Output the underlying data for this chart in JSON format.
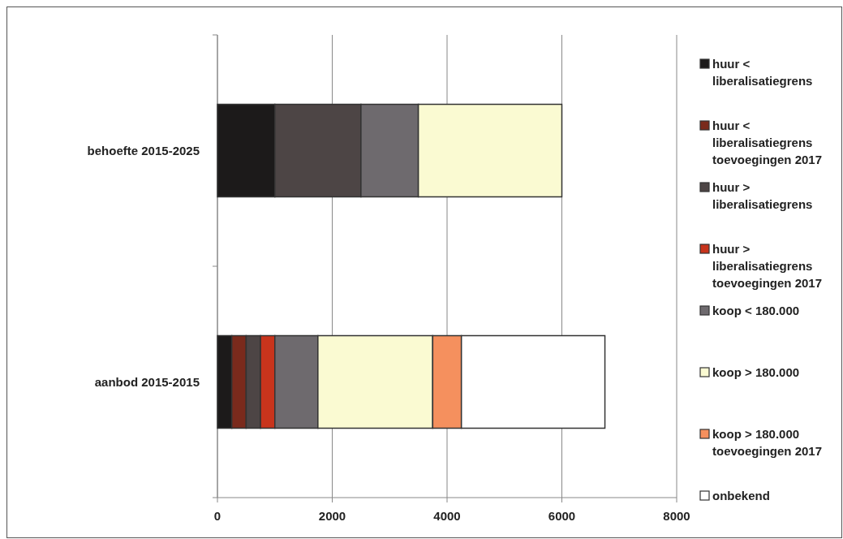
{
  "chart_data": {
    "type": "bar",
    "orientation": "horizontal",
    "stacked": true,
    "categories": [
      "behoefte 2015-2025",
      "aanbod 2015-2015"
    ],
    "series": [
      {
        "name": "huur < liberalisatiegrens",
        "color": "#1c1a1a",
        "values": [
          1000,
          250
        ]
      },
      {
        "name": "huur < liberalisatiegrens toevoegingen 2017",
        "color": "#7a2a1c",
        "values": [
          0,
          250
        ]
      },
      {
        "name": "huur > liberalisatiegrens",
        "color": "#4d4545",
        "values": [
          1500,
          250
        ]
      },
      {
        "name": "huur > liberalisatiegrens toevoegingen 2017",
        "color": "#c8341c",
        "values": [
          0,
          250
        ]
      },
      {
        "name": "koop < 180.000",
        "color": "#6e6a6e",
        "values": [
          1000,
          750
        ]
      },
      {
        "name": "koop > 180.000",
        "color": "#fafad2",
        "values": [
          2500,
          2000
        ]
      },
      {
        "name": "koop > 180.000 toevoegingen 2017",
        "color": "#f5905e",
        "values": [
          0,
          500
        ]
      },
      {
        "name": "onbekend",
        "color": "#ffffff",
        "values": [
          0,
          2500
        ]
      }
    ],
    "xlim": [
      0,
      8000
    ],
    "xticks": [
      0,
      2000,
      4000,
      6000,
      8000
    ],
    "grid": "x",
    "legend": "right"
  }
}
